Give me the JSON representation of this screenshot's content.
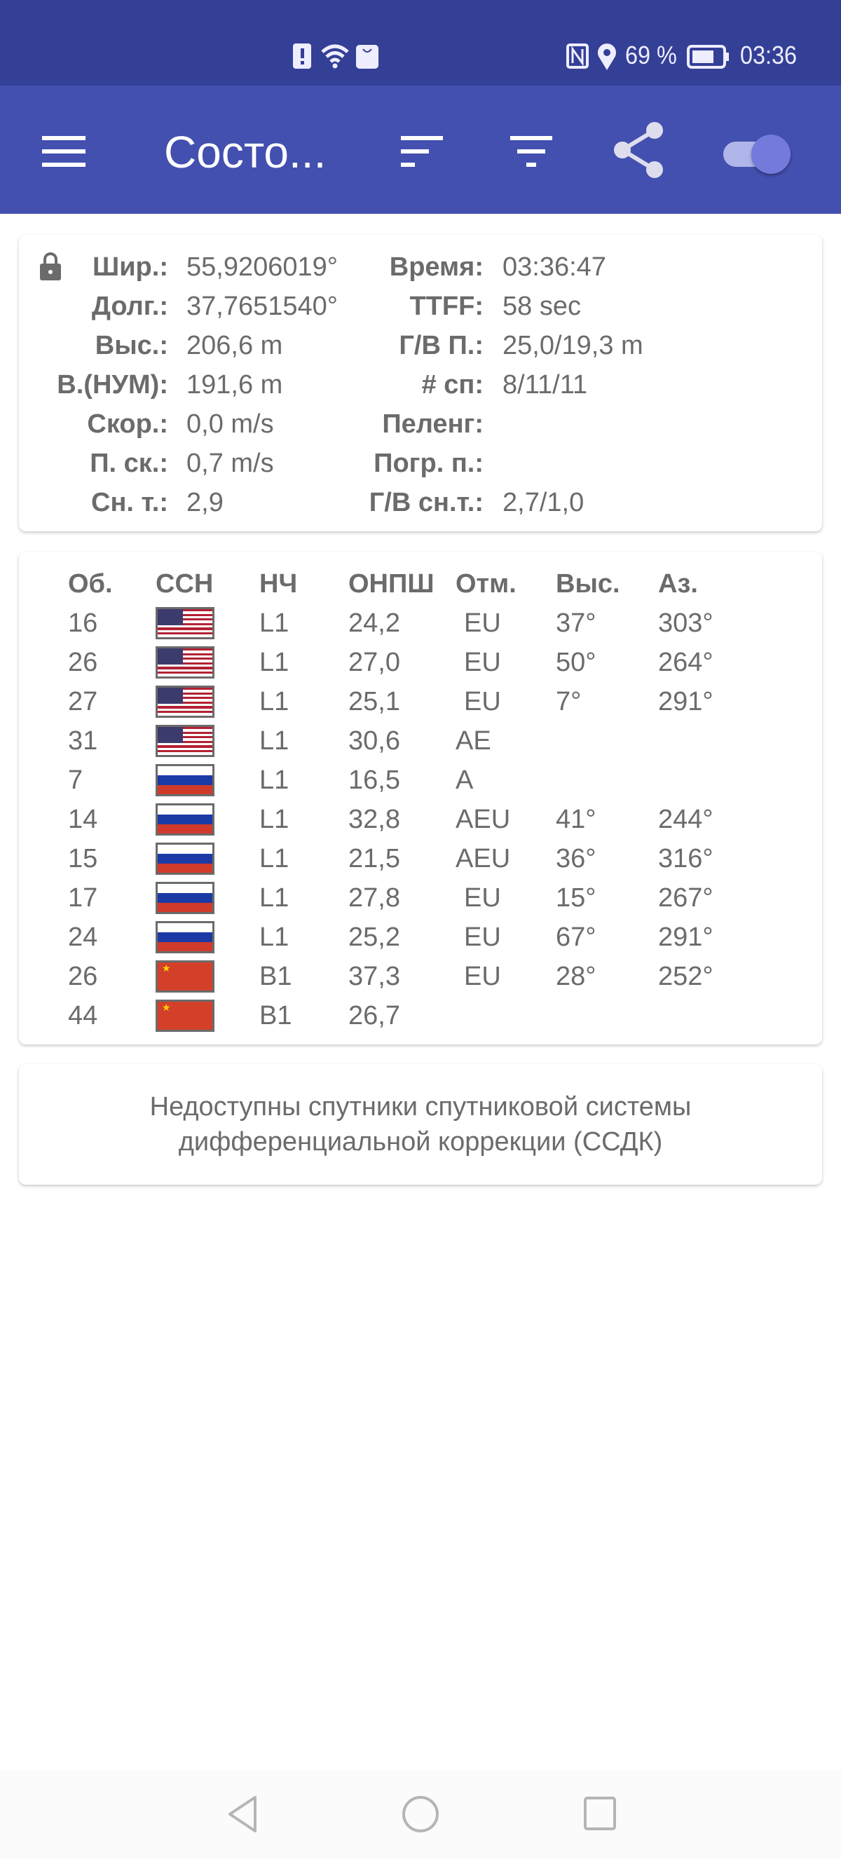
{
  "status_bar": {
    "battery": "69 %",
    "time": "03:36",
    "icons": [
      "sim-alert-icon",
      "wifi-icon",
      "huawei-app-icon",
      "nfc-icon",
      "location-icon",
      "battery-icon"
    ]
  },
  "app_bar": {
    "title": "Состо...",
    "icons": [
      "menu-icon",
      "sort-icon",
      "filter-icon",
      "share-icon",
      "toggle-switch"
    ],
    "toggle_on": true,
    "color": "#4350af"
  },
  "position": {
    "left": [
      {
        "label": "Шир.:",
        "value": "55,9206019°"
      },
      {
        "label": "Долг.:",
        "value": "37,7651540°"
      },
      {
        "label": "Выс.:",
        "value": "206,6 m"
      },
      {
        "label": "В.(НУМ):",
        "value": "191,6 m"
      },
      {
        "label": "Скор.:",
        "value": "0,0 m/s"
      },
      {
        "label": "П. ск.:",
        "value": "0,7 m/s"
      },
      {
        "label": "Сн. т.:",
        "value": "2,9"
      }
    ],
    "right": [
      {
        "label": "Время:",
        "value": "03:36:47"
      },
      {
        "label": "TTFF:",
        "value": "58 sec"
      },
      {
        "label": "Г/В П.:",
        "value": "25,0/19,3 m"
      },
      {
        "label": "# сп:",
        "value": "8/11/11"
      },
      {
        "label": "Пеленг:",
        "value": ""
      },
      {
        "label": "Погр. п.:",
        "value": ""
      },
      {
        "label": "Г/В сн.т.:",
        "value": "2,7/1,0"
      }
    ]
  },
  "satellites": {
    "headers": [
      "Об.",
      "ССН",
      "НЧ",
      "ОНПШ",
      "Отм.",
      "Выс.",
      "Аз."
    ],
    "rows": [
      {
        "id": "16",
        "gnss": "us",
        "band": "L1",
        "cn0": "24,2",
        "flags": "EU",
        "elev": "37°",
        "az": "303°"
      },
      {
        "id": "26",
        "gnss": "us",
        "band": "L1",
        "cn0": "27,0",
        "flags": "EU",
        "elev": "50°",
        "az": "264°"
      },
      {
        "id": "27",
        "gnss": "us",
        "band": "L1",
        "cn0": "25,1",
        "flags": "EU",
        "elev": "7°",
        "az": "291°"
      },
      {
        "id": "31",
        "gnss": "us",
        "band": "L1",
        "cn0": "30,6",
        "flags": "AE",
        "elev": "",
        "az": ""
      },
      {
        "id": "7",
        "gnss": "ru",
        "band": "L1",
        "cn0": "16,5",
        "flags": "A",
        "elev": "",
        "az": ""
      },
      {
        "id": "14",
        "gnss": "ru",
        "band": "L1",
        "cn0": "32,8",
        "flags": "AEU",
        "elev": "41°",
        "az": "244°"
      },
      {
        "id": "15",
        "gnss": "ru",
        "band": "L1",
        "cn0": "21,5",
        "flags": "AEU",
        "elev": "36°",
        "az": "316°"
      },
      {
        "id": "17",
        "gnss": "ru",
        "band": "L1",
        "cn0": "27,8",
        "flags": "EU",
        "elev": "15°",
        "az": "267°"
      },
      {
        "id": "24",
        "gnss": "ru",
        "band": "L1",
        "cn0": "25,2",
        "flags": "EU",
        "elev": "67°",
        "az": "291°"
      },
      {
        "id": "26",
        "gnss": "cn",
        "band": "B1",
        "cn0": "37,3",
        "flags": "EU",
        "elev": "28°",
        "az": "252°"
      },
      {
        "id": "44",
        "gnss": "cn",
        "band": "B1",
        "cn0": "26,7",
        "flags": "",
        "elev": "",
        "az": ""
      }
    ]
  },
  "sbas": {
    "message_line1": "Недоступны спутники спутниковой системы",
    "message_line2": "дифференциальной коррекции (ССДК)"
  },
  "nav_bar": {
    "icons": [
      "back-icon",
      "home-icon",
      "recents-icon"
    ]
  }
}
